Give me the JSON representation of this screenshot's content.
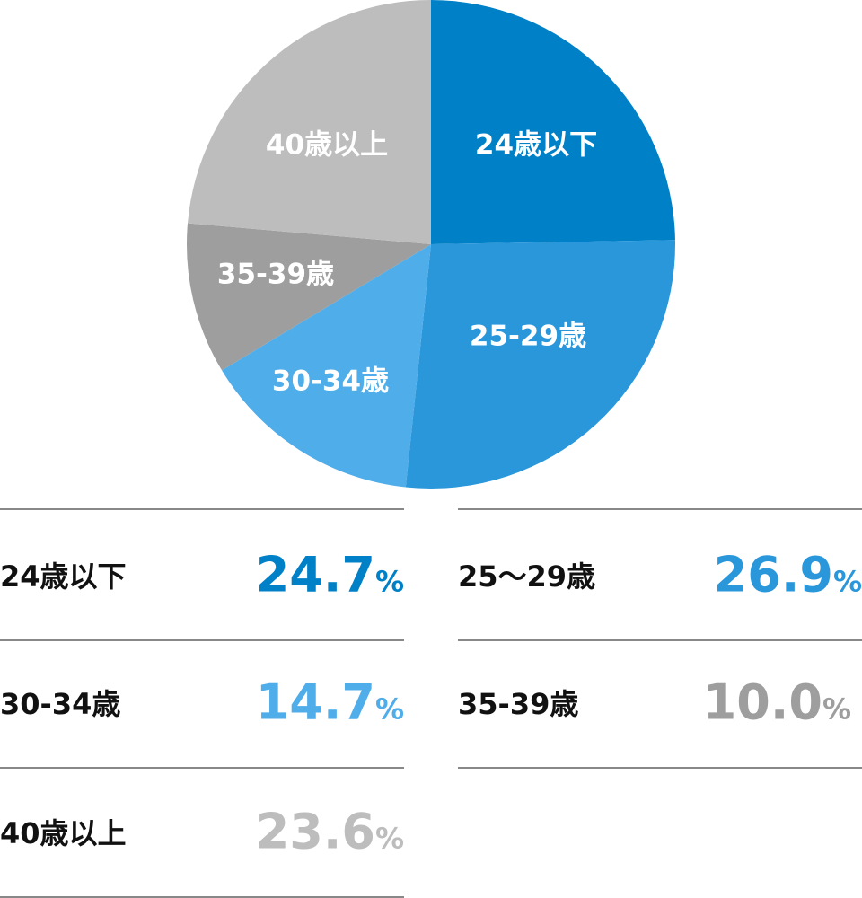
{
  "chart_data": {
    "type": "pie",
    "start": "top",
    "direction": "clockwise",
    "slices": [
      {
        "label": "24歳以下",
        "value": 24.7,
        "color": "#0080c6"
      },
      {
        "label": "25-29歳",
        "value": 26.9,
        "color": "#2b97db"
      },
      {
        "label": "30-34歳",
        "value": 14.7,
        "color": "#4fadea"
      },
      {
        "label": "35-39歳",
        "value": 10.0,
        "color": "#9e9e9e"
      },
      {
        "label": "40歳以上",
        "value": 23.6,
        "color": "#bdbdbd"
      }
    ]
  },
  "legend": [
    {
      "label": "24歳以下",
      "value": "24.7",
      "unit": "%",
      "color": "#0080c6"
    },
    {
      "label": "25〜29歳",
      "value": "26.9",
      "unit": "%",
      "color": "#2b97db"
    },
    {
      "label": "30-34歳",
      "value": "14.7",
      "unit": "%",
      "color": "#4fadea"
    },
    {
      "label": "35-39歳",
      "value": "10.0",
      "unit": "%",
      "color": "#9e9e9e"
    },
    {
      "label": "40歳以上",
      "value": "23.6",
      "unit": "%",
      "color": "#bdbdbd"
    }
  ]
}
